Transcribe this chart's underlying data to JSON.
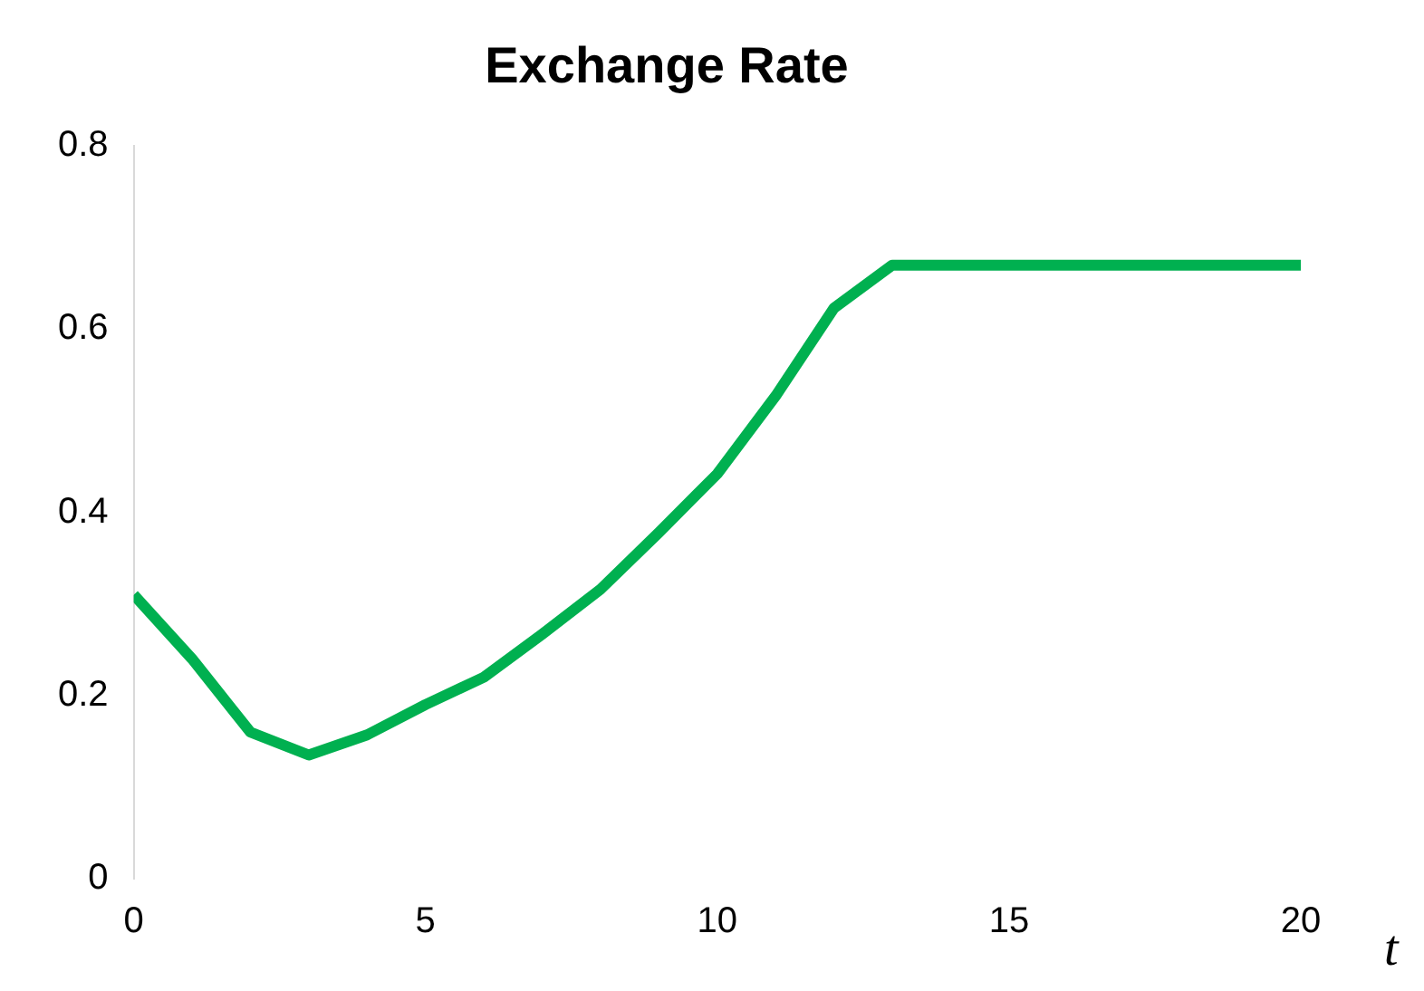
{
  "chart_data": {
    "type": "line",
    "title": "Exchange Rate",
    "xlabel": "t",
    "x": [
      0,
      1,
      2,
      3,
      4,
      5,
      6,
      7,
      8,
      9,
      10,
      11,
      12,
      13,
      14,
      15,
      16,
      17,
      18,
      19,
      20
    ],
    "series": [
      {
        "color": "#00b050",
        "values": [
          0.31,
          0.24,
          0.16,
          0.135,
          0.157,
          0.19,
          0.22,
          0.267,
          0.316,
          0.378,
          0.442,
          0.527,
          0.623,
          0.67,
          0.67,
          0.67,
          0.67,
          0.67,
          0.67,
          0.67,
          0.67
        ]
      }
    ],
    "xlim": [
      0,
      20
    ],
    "xticks": [
      0,
      5,
      10,
      15,
      20
    ],
    "ylim": [
      0,
      0.8
    ],
    "yticks": [
      0,
      0.2,
      0.4,
      0.6,
      0.8
    ],
    "grid": false,
    "legend": false,
    "marker": "none",
    "line_style": "solid"
  }
}
